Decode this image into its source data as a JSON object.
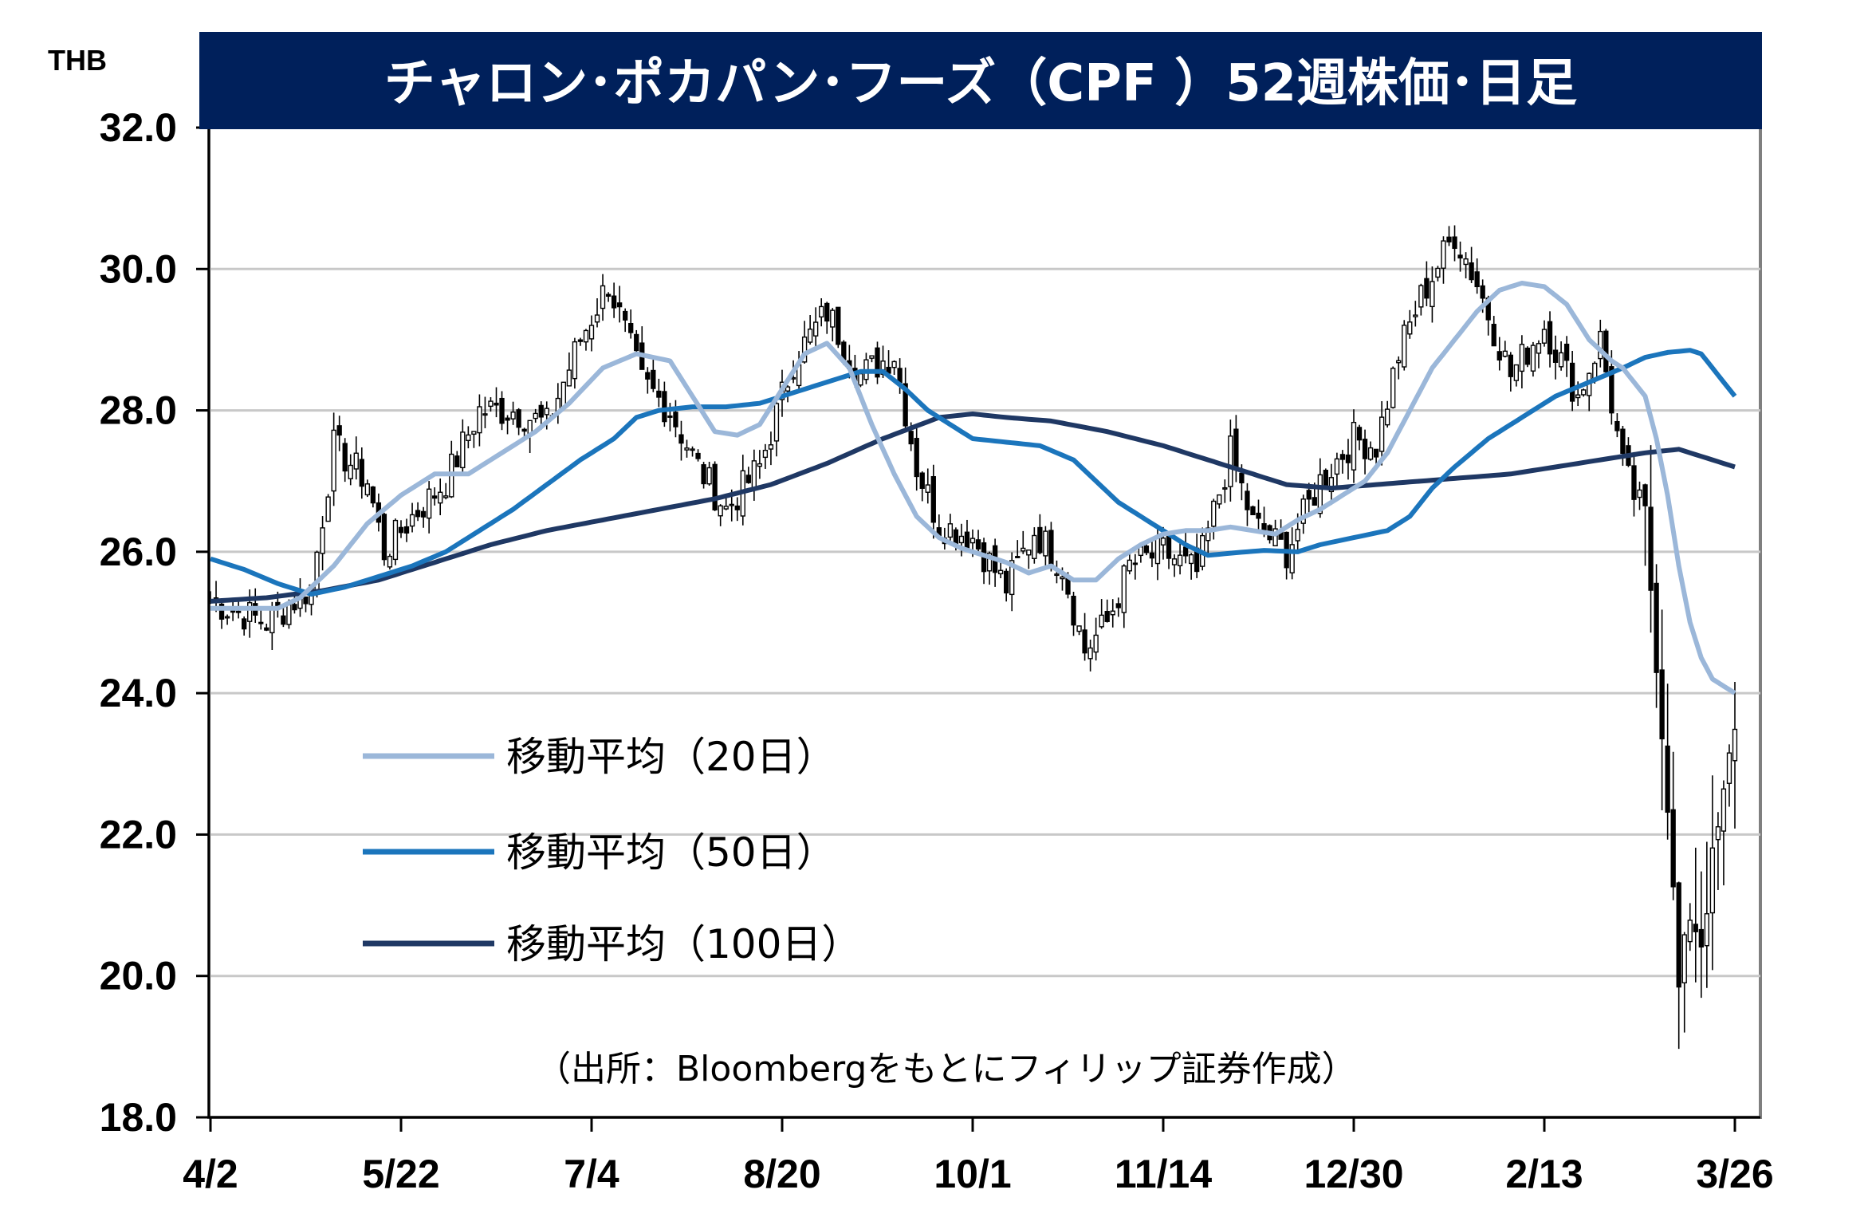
{
  "chart_data": {
    "type": "candlestick",
    "title": "チャロン･ポカパン･フーズ（CPF ）52週株価･日足",
    "unit": "THB",
    "ylim": [
      18.0,
      32.0
    ],
    "y_ticks": [
      "32.0",
      "30.0",
      "28.0",
      "26.0",
      "24.0",
      "22.0",
      "20.0",
      "18.0"
    ],
    "x_ticks": [
      {
        "label": "4/2",
        "index": 0
      },
      {
        "label": "5/22",
        "index": 34
      },
      {
        "label": "7/4",
        "index": 68
      },
      {
        "label": "8/20",
        "index": 102
      },
      {
        "label": "10/1",
        "index": 136
      },
      {
        "label": "11/14",
        "index": 170
      },
      {
        "label": "12/30",
        "index": 204
      },
      {
        "label": "2/13",
        "index": 238
      },
      {
        "label": "3/26",
        "index": 272
      }
    ],
    "grid": true,
    "legend_position": "lower-left",
    "source": "（出所：Bloombergをもとにフィリップ証券作成）",
    "series": [
      {
        "name": "移動平均（20日）",
        "color": "#9bb7d9"
      },
      {
        "name": "移動平均（50日）",
        "color": "#1b75bc"
      },
      {
        "name": "移動平均（100日）",
        "color": "#1f3864"
      }
    ],
    "anchors": [
      {
        "i": 0,
        "c": 25.3
      },
      {
        "i": 10,
        "c": 25.0
      },
      {
        "i": 18,
        "c": 25.5
      },
      {
        "i": 22,
        "c": 27.5
      },
      {
        "i": 28,
        "c": 27.0
      },
      {
        "i": 31,
        "c": 26.0
      },
      {
        "i": 36,
        "c": 26.5
      },
      {
        "i": 42,
        "c": 27.0
      },
      {
        "i": 48,
        "c": 28.0
      },
      {
        "i": 54,
        "c": 28.0
      },
      {
        "i": 60,
        "c": 27.8
      },
      {
        "i": 66,
        "c": 29.0
      },
      {
        "i": 71,
        "c": 29.8
      },
      {
        "i": 77,
        "c": 28.4
      },
      {
        "i": 82,
        "c": 28.0
      },
      {
        "i": 87,
        "c": 27.2
      },
      {
        "i": 92,
        "c": 26.6
      },
      {
        "i": 98,
        "c": 27.2
      },
      {
        "i": 104,
        "c": 28.7
      },
      {
        "i": 110,
        "c": 29.4
      },
      {
        "i": 116,
        "c": 28.5
      },
      {
        "i": 122,
        "c": 28.8
      },
      {
        "i": 126,
        "c": 27.2
      },
      {
        "i": 130,
        "c": 26.4
      },
      {
        "i": 136,
        "c": 26.2
      },
      {
        "i": 142,
        "c": 25.5
      },
      {
        "i": 147,
        "c": 26.3
      },
      {
        "i": 152,
        "c": 25.8
      },
      {
        "i": 156,
        "c": 24.6
      },
      {
        "i": 160,
        "c": 25.0
      },
      {
        "i": 164,
        "c": 25.8
      },
      {
        "i": 170,
        "c": 26.0
      },
      {
        "i": 176,
        "c": 25.7
      },
      {
        "i": 182,
        "c": 27.4
      },
      {
        "i": 186,
        "c": 26.4
      },
      {
        "i": 192,
        "c": 26.0
      },
      {
        "i": 198,
        "c": 27.0
      },
      {
        "i": 204,
        "c": 27.6
      },
      {
        "i": 208,
        "c": 27.5
      },
      {
        "i": 212,
        "c": 28.8
      },
      {
        "i": 216,
        "c": 29.6
      },
      {
        "i": 222,
        "c": 30.5
      },
      {
        "i": 226,
        "c": 29.8
      },
      {
        "i": 232,
        "c": 28.5
      },
      {
        "i": 238,
        "c": 29.2
      },
      {
        "i": 244,
        "c": 28.2
      },
      {
        "i": 248,
        "c": 29.0
      },
      {
        "i": 252,
        "c": 27.2
      },
      {
        "i": 254,
        "c": 26.8
      },
      {
        "i": 256,
        "c": 26.5
      },
      {
        "i": 258,
        "c": 24.5
      },
      {
        "i": 260,
        "c": 22.5
      },
      {
        "i": 262,
        "c": 19.8
      },
      {
        "i": 264,
        "c": 20.9
      },
      {
        "i": 266,
        "c": 20.5
      },
      {
        "i": 268,
        "c": 21.6
      },
      {
        "i": 270,
        "c": 22.5
      },
      {
        "i": 272,
        "c": 23.6
      }
    ],
    "ma20": [
      [
        0,
        25.2
      ],
      [
        12,
        25.2
      ],
      [
        16,
        25.35
      ],
      [
        22,
        25.8
      ],
      [
        28,
        26.4
      ],
      [
        34,
        26.8
      ],
      [
        40,
        27.1
      ],
      [
        46,
        27.1
      ],
      [
        52,
        27.4
      ],
      [
        58,
        27.7
      ],
      [
        64,
        28.1
      ],
      [
        70,
        28.6
      ],
      [
        76,
        28.8
      ],
      [
        82,
        28.7
      ],
      [
        86,
        28.2
      ],
      [
        90,
        27.7
      ],
      [
        94,
        27.65
      ],
      [
        98,
        27.8
      ],
      [
        102,
        28.3
      ],
      [
        106,
        28.8
      ],
      [
        110,
        28.95
      ],
      [
        114,
        28.6
      ],
      [
        118,
        27.8
      ],
      [
        122,
        27.1
      ],
      [
        126,
        26.5
      ],
      [
        130,
        26.2
      ],
      [
        134,
        26.05
      ],
      [
        138,
        25.95
      ],
      [
        142,
        25.85
      ],
      [
        146,
        25.7
      ],
      [
        150,
        25.8
      ],
      [
        154,
        25.6
      ],
      [
        158,
        25.6
      ],
      [
        162,
        25.9
      ],
      [
        166,
        26.1
      ],
      [
        170,
        26.25
      ],
      [
        174,
        26.3
      ],
      [
        178,
        26.3
      ],
      [
        182,
        26.35
      ],
      [
        186,
        26.3
      ],
      [
        190,
        26.25
      ],
      [
        194,
        26.45
      ],
      [
        198,
        26.6
      ],
      [
        202,
        26.8
      ],
      [
        206,
        27.0
      ],
      [
        210,
        27.4
      ],
      [
        214,
        28.0
      ],
      [
        218,
        28.6
      ],
      [
        222,
        29.0
      ],
      [
        226,
        29.4
      ],
      [
        230,
        29.7
      ],
      [
        234,
        29.8
      ],
      [
        238,
        29.75
      ],
      [
        242,
        29.5
      ],
      [
        246,
        29.0
      ],
      [
        250,
        28.7
      ],
      [
        252,
        28.6
      ],
      [
        254,
        28.4
      ],
      [
        256,
        28.2
      ],
      [
        258,
        27.6
      ],
      [
        260,
        26.8
      ],
      [
        262,
        25.8
      ],
      [
        264,
        25.0
      ],
      [
        266,
        24.5
      ],
      [
        268,
        24.2
      ],
      [
        270,
        24.1
      ],
      [
        272,
        24.0
      ]
    ],
    "ma50": [
      [
        0,
        25.9
      ],
      [
        6,
        25.75
      ],
      [
        12,
        25.55
      ],
      [
        18,
        25.4
      ],
      [
        24,
        25.5
      ],
      [
        30,
        25.65
      ],
      [
        36,
        25.8
      ],
      [
        42,
        26.0
      ],
      [
        48,
        26.3
      ],
      [
        54,
        26.6
      ],
      [
        60,
        26.95
      ],
      [
        66,
        27.3
      ],
      [
        72,
        27.6
      ],
      [
        76,
        27.9
      ],
      [
        80,
        28.0
      ],
      [
        86,
        28.05
      ],
      [
        92,
        28.05
      ],
      [
        98,
        28.1
      ],
      [
        104,
        28.25
      ],
      [
        110,
        28.4
      ],
      [
        116,
        28.55
      ],
      [
        120,
        28.55
      ],
      [
        124,
        28.3
      ],
      [
        128,
        28.0
      ],
      [
        132,
        27.8
      ],
      [
        136,
        27.6
      ],
      [
        142,
        27.55
      ],
      [
        148,
        27.5
      ],
      [
        154,
        27.3
      ],
      [
        158,
        27.0
      ],
      [
        162,
        26.7
      ],
      [
        166,
        26.5
      ],
      [
        170,
        26.3
      ],
      [
        174,
        26.1
      ],
      [
        178,
        25.95
      ],
      [
        182,
        25.98
      ],
      [
        188,
        26.02
      ],
      [
        194,
        26.0
      ],
      [
        198,
        26.1
      ],
      [
        204,
        26.2
      ],
      [
        210,
        26.3
      ],
      [
        214,
        26.5
      ],
      [
        218,
        26.9
      ],
      [
        222,
        27.2
      ],
      [
        228,
        27.6
      ],
      [
        234,
        27.9
      ],
      [
        240,
        28.2
      ],
      [
        246,
        28.4
      ],
      [
        252,
        28.6
      ],
      [
        256,
        28.75
      ],
      [
        260,
        28.82
      ],
      [
        264,
        28.85
      ],
      [
        266,
        28.8
      ],
      [
        268,
        28.6
      ],
      [
        270,
        28.4
      ],
      [
        272,
        28.2
      ]
    ],
    "ma100": [
      [
        0,
        25.3
      ],
      [
        10,
        25.35
      ],
      [
        20,
        25.45
      ],
      [
        30,
        25.6
      ],
      [
        40,
        25.85
      ],
      [
        50,
        26.1
      ],
      [
        60,
        26.3
      ],
      [
        70,
        26.45
      ],
      [
        80,
        26.6
      ],
      [
        90,
        26.75
      ],
      [
        100,
        26.95
      ],
      [
        110,
        27.25
      ],
      [
        120,
        27.6
      ],
      [
        130,
        27.9
      ],
      [
        136,
        27.95
      ],
      [
        142,
        27.9
      ],
      [
        150,
        27.85
      ],
      [
        160,
        27.7
      ],
      [
        170,
        27.5
      ],
      [
        178,
        27.3
      ],
      [
        186,
        27.1
      ],
      [
        192,
        26.95
      ],
      [
        200,
        26.9
      ],
      [
        208,
        26.95
      ],
      [
        216,
        27.0
      ],
      [
        224,
        27.05
      ],
      [
        232,
        27.1
      ],
      [
        240,
        27.2
      ],
      [
        248,
        27.3
      ],
      [
        256,
        27.4
      ],
      [
        262,
        27.45
      ],
      [
        266,
        27.35
      ],
      [
        270,
        27.25
      ],
      [
        272,
        27.2
      ]
    ]
  }
}
